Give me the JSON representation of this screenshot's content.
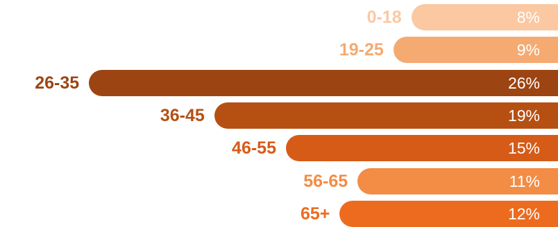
{
  "chart_data": {
    "type": "bar",
    "orientation": "horizontal",
    "categories": [
      "0-18",
      "19-25",
      "26-35",
      "36-45",
      "46-55",
      "56-65",
      "65+"
    ],
    "values": [
      8,
      9,
      26,
      19,
      15,
      11,
      12
    ],
    "value_labels": [
      "8%",
      "9%",
      "26%",
      "19%",
      "15%",
      "11%",
      "12%"
    ],
    "unit": "%",
    "colors": [
      "#fbc8a2",
      "#f5aa72",
      "#9c4513",
      "#b65012",
      "#d55b17",
      "#f38c45",
      "#ed6b1f"
    ],
    "bar_alignment": "right",
    "title": "",
    "xlabel": "",
    "ylabel": "",
    "grid": false,
    "legend": "none"
  }
}
